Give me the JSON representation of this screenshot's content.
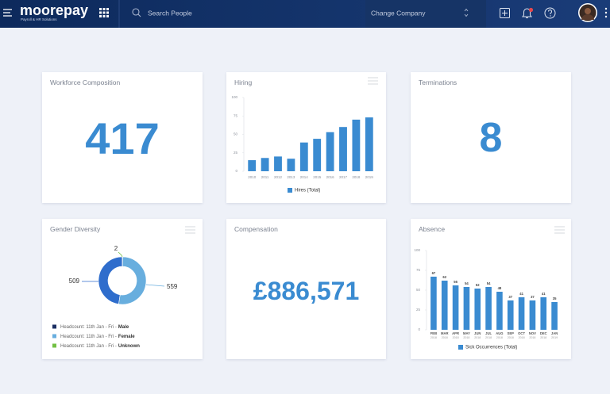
{
  "header": {
    "logo": "moorepay",
    "logo_tagline": "Payroll & HR Solutions",
    "search_placeholder": "Search People",
    "company_selector": "Change Company"
  },
  "cards": [
    {
      "title": "Workforce Composition",
      "value": 417
    },
    {
      "title": "Hiring",
      "chart_data": {
        "type": "bar",
        "categories": [
          "2010",
          "2011",
          "2012",
          "2013",
          "2014",
          "2015",
          "2016",
          "2017",
          "2018",
          "2019"
        ],
        "series": [
          {
            "name": "Hires (Total)",
            "color": "#3a8bd1",
            "values": [
              15,
              18,
              20,
              17,
              39,
              44,
              53,
              60,
              70,
              73
            ]
          }
        ],
        "ylim": [
          0,
          100
        ],
        "yticks": [
          0,
          25,
          50,
          75,
          100
        ]
      }
    },
    {
      "title": "Terminations",
      "value": 8
    },
    {
      "title": "Gender Diversity",
      "chart_data": {
        "type": "donut",
        "legend_prefix": "Headcount: 11th Jan - Fri -",
        "categories": [
          "Male",
          "Female",
          "Unknown"
        ],
        "values": [
          509,
          559,
          2
        ],
        "colors": [
          "#2f6dcc",
          "#68aede",
          "#72c043"
        ]
      }
    },
    {
      "title": "Compensation",
      "value": "£886,571"
    },
    {
      "title": "Absence",
      "chart_data": {
        "type": "bar",
        "categories": [
          "FEB",
          "MAR",
          "APR",
          "MAY",
          "JUN",
          "JUL",
          "AUG",
          "SEP",
          "OCT",
          "NOV",
          "DEC",
          "JAN"
        ],
        "category_sublabels": [
          "2018",
          "2018",
          "2018",
          "2018",
          "2018",
          "2018",
          "2018",
          "2018",
          "2018",
          "2018",
          "2018",
          "2019"
        ],
        "series": [
          {
            "name": "Sick Occurrences (Total)",
            "color": "#3a8bd1",
            "values": [
              67,
              62,
              56,
              54,
              52,
              54,
              48,
              37,
              41,
              37,
              41,
              35
            ]
          }
        ],
        "ylim": [
          0,
          100
        ],
        "yticks": [
          0,
          25,
          50,
          75,
          100
        ],
        "data_labels": true
      }
    }
  ]
}
